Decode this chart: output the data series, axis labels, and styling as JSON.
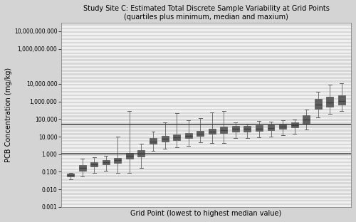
{
  "title_line1": "Study Site C: Estimated Total Discrete Sample Variability at Grid Points",
  "title_line2": "(quartiles plus minimum, median and maxium)",
  "xlabel": "Grid Point (lowest to highest median value)",
  "ylabel": "PCB Concentration (mg/kg)",
  "ylim_min": 0.001,
  "ylim_max": 30000000,
  "reference_line_1": 1.1,
  "reference_line_2": 50,
  "fig_facecolor": "#d4d4d4",
  "plot_facecolor": "#e8e8e8",
  "stripe_color_dark": "#d8d8d8",
  "stripe_color_light": "#f0f0f0",
  "box_facecolor": "#d0d0d0",
  "box_edgecolor": "#606060",
  "median_color": "#404040",
  "whisker_color": "#606060",
  "yticks": [
    0.001,
    0.01,
    0.1,
    1.0,
    10.0,
    100.0,
    1000.0,
    10000.0,
    1000000.0,
    10000000.0
  ],
  "ytick_labels": [
    "0.001",
    "0.010",
    "0.100",
    "1.000",
    "10.000",
    "100.000",
    "1,000.000",
    "10,000.000",
    "1,000,000.000",
    "10,000,000.000"
  ],
  "boxes": [
    {
      "median": 0.063,
      "q1": 0.053,
      "q3": 0.078,
      "whislo": 0.038,
      "whishi": 0.09
    },
    {
      "median": 0.17,
      "q1": 0.12,
      "q3": 0.24,
      "whislo": 0.055,
      "whishi": 0.55
    },
    {
      "median": 0.27,
      "q1": 0.21,
      "q3": 0.35,
      "whislo": 0.09,
      "whishi": 0.65
    },
    {
      "median": 0.35,
      "q1": 0.27,
      "q3": 0.47,
      "whislo": 0.11,
      "whishi": 0.85
    },
    {
      "median": 0.45,
      "q1": 0.33,
      "q3": 0.6,
      "whislo": 0.09,
      "whishi": 10.0
    },
    {
      "median": 0.8,
      "q1": 0.55,
      "q3": 1.2,
      "whislo": 0.085,
      "whishi": 300.0
    },
    {
      "median": 1.1,
      "q1": 0.75,
      "q3": 1.7,
      "whislo": 0.16,
      "whishi": 4.0
    },
    {
      "median": 5.5,
      "q1": 3.8,
      "q3": 8.0,
      "whislo": 1.5,
      "whishi": 20.0
    },
    {
      "median": 7.5,
      "q1": 5.5,
      "q3": 11.0,
      "whislo": 2.0,
      "whishi": 65.0
    },
    {
      "median": 9.0,
      "q1": 6.5,
      "q3": 13.0,
      "whislo": 2.5,
      "whishi": 220.0
    },
    {
      "median": 11.0,
      "q1": 8.0,
      "q3": 16.0,
      "whislo": 3.0,
      "whishi": 90.0
    },
    {
      "median": 15.0,
      "q1": 11.0,
      "q3": 22.0,
      "whislo": 5.0,
      "whishi": 110.0
    },
    {
      "median": 19.0,
      "q1": 14.0,
      "q3": 29.0,
      "whislo": 4.5,
      "whishi": 250.0
    },
    {
      "median": 23.0,
      "q1": 16.0,
      "q3": 37.0,
      "whislo": 4.5,
      "whishi": 280.0
    },
    {
      "median": 27.0,
      "q1": 20.0,
      "q3": 42.0,
      "whislo": 8.0,
      "whishi": 65.0
    },
    {
      "median": 27.0,
      "q1": 20.0,
      "q3": 40.0,
      "whislo": 8.0,
      "whishi": 55.0
    },
    {
      "median": 28.0,
      "q1": 21.0,
      "q3": 43.0,
      "whislo": 9.0,
      "whishi": 75.0
    },
    {
      "median": 32.0,
      "q1": 23.0,
      "q3": 48.0,
      "whislo": 10.0,
      "whishi": 70.0
    },
    {
      "median": 38.0,
      "q1": 27.0,
      "q3": 56.0,
      "whislo": 12.0,
      "whishi": 85.0
    },
    {
      "median": 45.0,
      "q1": 33.0,
      "q3": 68.0,
      "whislo": 14.0,
      "whishi": 95.0
    },
    {
      "median": 95.0,
      "q1": 55.0,
      "q3": 170.0,
      "whislo": 25.0,
      "whishi": 350.0
    },
    {
      "median": 700.0,
      "q1": 380.0,
      "q3": 1400.0,
      "whislo": 130.0,
      "whishi": 3500.0
    },
    {
      "median": 900.0,
      "q1": 500.0,
      "q3": 1800.0,
      "whislo": 200.0,
      "whishi": 9000.0
    },
    {
      "median": 1100.0,
      "q1": 650.0,
      "q3": 2200.0,
      "whislo": 280.0,
      "whishi": 11000.0
    }
  ]
}
